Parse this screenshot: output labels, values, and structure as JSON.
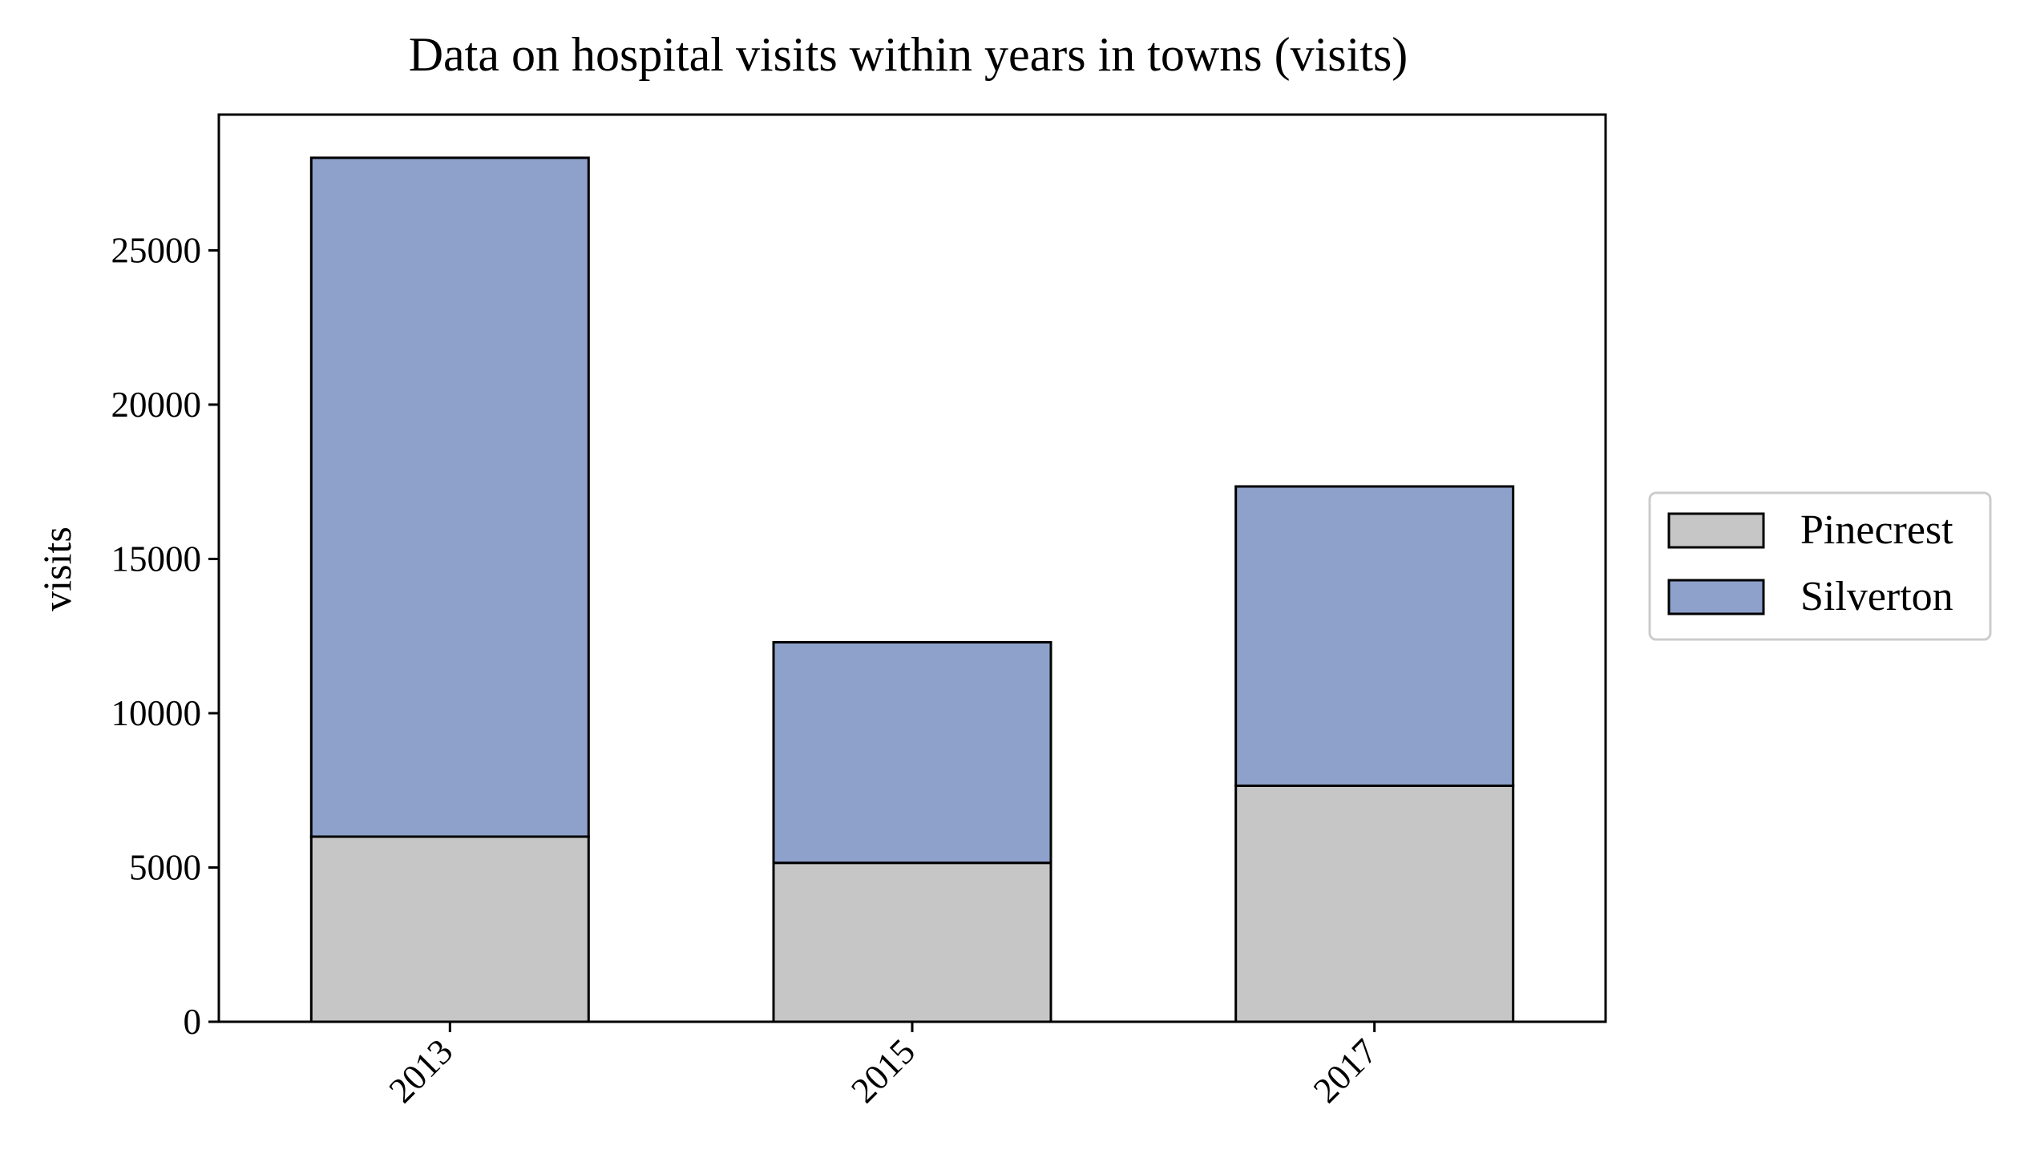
{
  "chart_data": {
    "type": "bar",
    "stacked": true,
    "title": "Data on hospital visits within years in towns (visits)",
    "xlabel": "",
    "ylabel": "visits",
    "categories": [
      "2013",
      "2015",
      "2017"
    ],
    "series": [
      {
        "name": "Pinecrest",
        "values": [
          6000,
          5150,
          7650
        ],
        "color": "#c6c6c6"
      },
      {
        "name": "Silverton",
        "values": [
          22000,
          7150,
          9700
        ],
        "color": "#8ea1cb"
      }
    ],
    "ylim": [
      0,
      29400
    ],
    "yticks": [
      0,
      5000,
      10000,
      15000,
      20000,
      25000
    ],
    "ytick_labels": [
      "0",
      "5000",
      "10000",
      "15000",
      "20000",
      "25000"
    ],
    "grid": false,
    "legend_position": "right"
  }
}
